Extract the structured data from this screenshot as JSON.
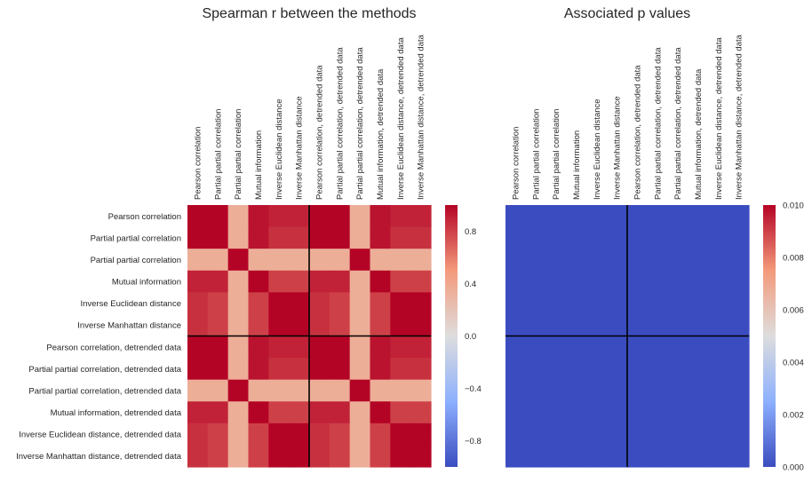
{
  "figure": {
    "colormap": "coolwarm",
    "divider_color": "#000000"
  },
  "chart_data": [
    {
      "type": "heatmap",
      "title": "Spearman r between the methods",
      "row_labels": [
        "Pearson correlation",
        "Partial partial correlation",
        "Partial partial correlation",
        "Mutual information",
        "Inverse Euclidean distance",
        "Inverse Manhattan distance",
        "Pearson correlation, detrended data",
        "Partial partial correlation, detrended data",
        "Partial partial correlation, detrended data",
        "Mutual information, detrended data",
        "Inverse Euclidean distance, detrended data",
        "Inverse Manhattan distance, detrended data"
      ],
      "col_labels": [
        "Pearson correlation",
        "Partial partial correlation",
        "Partial partial correlation",
        "Mutual information",
        "Inverse Euclidean distance",
        "Inverse Manhattan distance",
        "Pearson correlation, detrended data",
        "Partial partial correlation, detrended data",
        "Partial partial correlation, detrended data",
        "Mutual information, detrended data",
        "Inverse Euclidean distance, detrended data",
        "Inverse Manhattan distance, detrended data"
      ],
      "values": [
        [
          1.0,
          1.0,
          0.35,
          0.95,
          0.9,
          0.9,
          1.0,
          1.0,
          0.35,
          0.95,
          0.9,
          0.9
        ],
        [
          1.0,
          1.0,
          0.35,
          0.95,
          0.85,
          0.85,
          1.0,
          1.0,
          0.35,
          0.95,
          0.85,
          0.85
        ],
        [
          0.35,
          0.35,
          1.0,
          0.35,
          0.35,
          0.35,
          0.35,
          0.35,
          1.0,
          0.35,
          0.35,
          0.35
        ],
        [
          0.9,
          0.9,
          0.35,
          1.0,
          0.8,
          0.8,
          0.9,
          0.9,
          0.35,
          1.0,
          0.8,
          0.8
        ],
        [
          0.85,
          0.8,
          0.35,
          0.8,
          1.0,
          1.0,
          0.85,
          0.8,
          0.35,
          0.8,
          1.0,
          1.0
        ],
        [
          0.85,
          0.8,
          0.35,
          0.8,
          1.0,
          1.0,
          0.85,
          0.8,
          0.35,
          0.8,
          1.0,
          1.0
        ],
        [
          1.0,
          1.0,
          0.35,
          0.95,
          0.9,
          0.9,
          1.0,
          1.0,
          0.35,
          0.95,
          0.9,
          0.9
        ],
        [
          1.0,
          1.0,
          0.35,
          0.95,
          0.85,
          0.85,
          1.0,
          1.0,
          0.35,
          0.95,
          0.85,
          0.85
        ],
        [
          0.35,
          0.35,
          1.0,
          0.35,
          0.35,
          0.35,
          0.35,
          0.35,
          1.0,
          0.35,
          0.35,
          0.35
        ],
        [
          0.9,
          0.9,
          0.35,
          1.0,
          0.8,
          0.8,
          0.9,
          0.9,
          0.35,
          1.0,
          0.8,
          0.8
        ],
        [
          0.85,
          0.8,
          0.35,
          0.8,
          1.0,
          1.0,
          0.85,
          0.8,
          0.35,
          0.8,
          1.0,
          1.0
        ],
        [
          0.85,
          0.8,
          0.35,
          0.8,
          1.0,
          1.0,
          0.85,
          0.8,
          0.35,
          0.8,
          1.0,
          1.0
        ]
      ],
      "vmin": -1.0,
      "vmax": 1.0,
      "colorbar_ticks": [
        0.8,
        0.4,
        0.0,
        -0.4,
        -0.8
      ],
      "colorbar_tick_labels": [
        "0.8",
        "0.4",
        "0.0",
        "−0.4",
        "−0.8"
      ],
      "show_row_labels": true,
      "divider_after_index": 6
    },
    {
      "type": "heatmap",
      "title": "Associated p values",
      "col_labels": [
        "Pearson correlation",
        "Partial partial correlation",
        "Partial partial correlation",
        "Mutual information",
        "Inverse Euclidean distance",
        "Inverse Manhattan distance",
        "Pearson correlation, detrended data",
        "Partial partial correlation, detrended data",
        "Partial partial correlation, detrended data",
        "Mutual information, detrended data",
        "Inverse Euclidean distance, detrended data",
        "Inverse Manhattan distance, detrended data"
      ],
      "uniform_value": 0.0,
      "rows": 12,
      "vmin": 0.0,
      "vmax": 0.01,
      "colorbar_ticks": [
        0.01,
        0.008,
        0.006,
        0.004,
        0.002,
        0.0
      ],
      "colorbar_tick_labels": [
        "0.010",
        "0.008",
        "0.006",
        "0.004",
        "0.002",
        "0.000"
      ],
      "show_row_labels": false,
      "divider_after_index": 6
    }
  ]
}
